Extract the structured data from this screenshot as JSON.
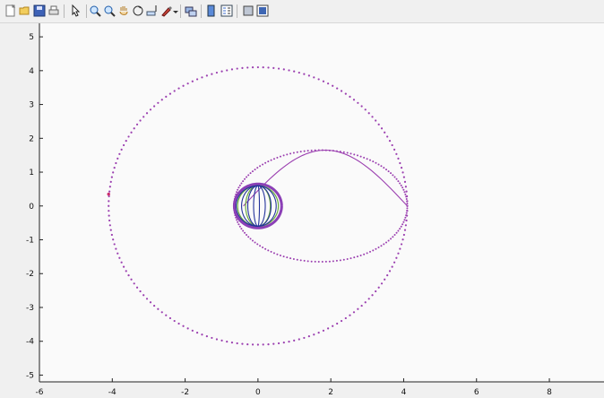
{
  "toolbar": {
    "items": [
      {
        "name": "new-figure-icon"
      },
      {
        "name": "open-file-icon"
      },
      {
        "name": "save-icon"
      },
      {
        "name": "print-icon"
      },
      {
        "name": "select-arrow-icon"
      },
      {
        "name": "zoom-in-icon"
      },
      {
        "name": "zoom-out-icon"
      },
      {
        "name": "pan-hand-icon"
      },
      {
        "name": "rotate-3d-icon"
      },
      {
        "name": "data-cursor-icon"
      },
      {
        "name": "brush-icon"
      },
      {
        "name": "link-plot-icon"
      },
      {
        "name": "colorbar-icon"
      },
      {
        "name": "legend-icon"
      },
      {
        "name": "hide-plot-tools-icon"
      },
      {
        "name": "show-plot-tools-icon"
      }
    ]
  },
  "chart_data": {
    "type": "line",
    "title": "",
    "xlabel": "",
    "ylabel": "",
    "xlim": [
      -6,
      9.5
    ],
    "ylim": [
      -5.2,
      5.4
    ],
    "x_ticks": [
      "-6",
      "-4",
      "-2",
      "0",
      "2",
      "4",
      "6",
      "8"
    ],
    "y_ticks": [
      "5",
      "4",
      "3",
      "2",
      "1",
      "0",
      "-1",
      "-2",
      "-3",
      "-4",
      "-5"
    ],
    "grid": false,
    "series": [
      {
        "kind": "circle-dotted",
        "cx": 0,
        "cy": 0,
        "r": 4.1,
        "color": "#9b3fb0"
      },
      {
        "kind": "ellipse-dotted",
        "cx": 1.72,
        "cy": 0,
        "rx": 2.38,
        "ry": 1.65,
        "color": "#9b3fb0"
      },
      {
        "kind": "circle",
        "cx": 0,
        "cy": 0,
        "r": 0.65,
        "color": "#8b3fb6"
      },
      {
        "kind": "meridian-green",
        "values": [
          -0.56,
          -0.34,
          0.34,
          0.56
        ],
        "color": "#6aaa3c"
      },
      {
        "kind": "meridian-blue",
        "values": [
          -0.6,
          -0.45,
          -0.28,
          -0.12,
          0.04,
          0.2,
          0.36,
          0.5
        ],
        "color": "#23339b"
      }
    ]
  }
}
